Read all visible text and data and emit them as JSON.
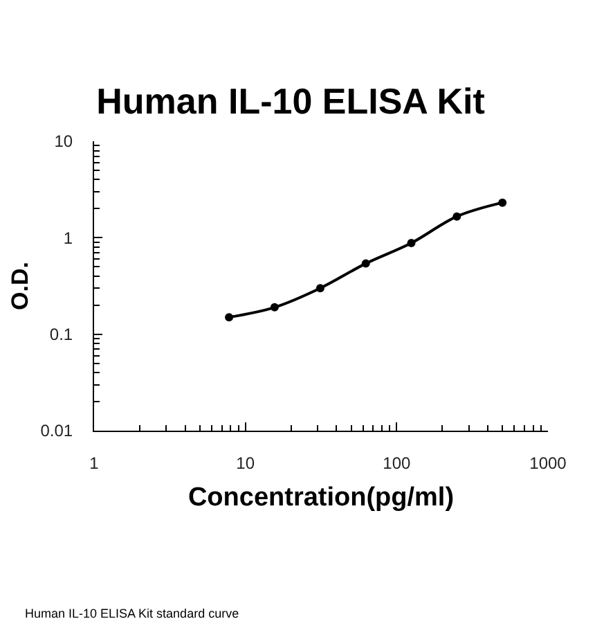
{
  "chart_data": {
    "type": "line",
    "title": "Human IL-10 ELISA Kit",
    "xlabel": "Concentration(pg/ml)",
    "ylabel": "O.D.",
    "x": [
      7.8,
      15.6,
      31.25,
      62.5,
      125,
      250,
      500
    ],
    "series": [
      {
        "color": "#000000",
        "values": [
          0.15,
          0.19,
          0.3,
          0.54,
          0.88,
          1.66,
          2.31
        ]
      }
    ],
    "log": "xy",
    "xlim": [
      1,
      1000
    ],
    "ylim": [
      0.01,
      10
    ],
    "xticks": [
      1,
      10,
      100,
      1000
    ],
    "yticks": [
      0.01,
      0.1,
      1,
      10
    ],
    "marker": "circle",
    "line_style": "solid",
    "annotations": [
      "Human IL-10 ELISA Kit standard curve"
    ]
  }
}
